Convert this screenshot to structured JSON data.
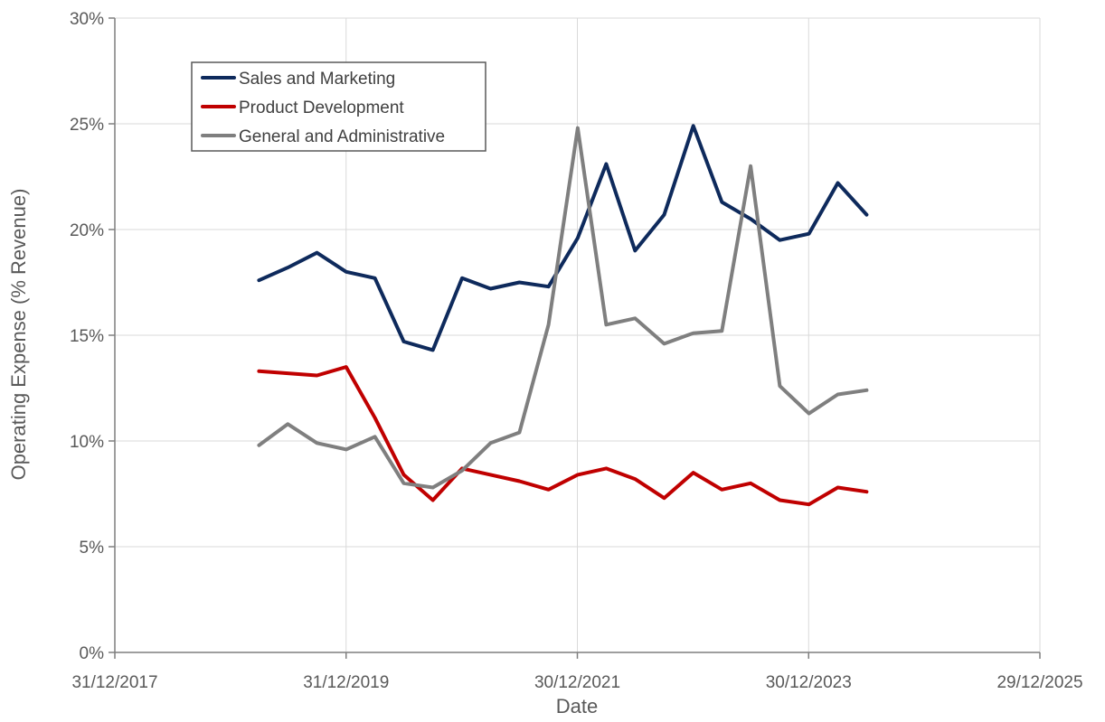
{
  "chart_data": {
    "type": "line",
    "xlabel": "Date",
    "ylabel": "Operating Expense (% Revenue)",
    "x_ticks": [
      "31/12/2017",
      "31/12/2019",
      "30/12/2021",
      "30/12/2023",
      "29/12/2025"
    ],
    "y_ticks": [
      "0%",
      "5%",
      "10%",
      "15%",
      "20%",
      "25%",
      "30%"
    ],
    "xlim": [
      "2017-12-31",
      "2025-12-29"
    ],
    "ylim": [
      0,
      30
    ],
    "grid": true,
    "legend_position": "top-left",
    "x": [
      "2019-03-31",
      "2019-06-30",
      "2019-09-30",
      "2019-12-31",
      "2020-03-31",
      "2020-06-30",
      "2020-09-30",
      "2020-12-31",
      "2021-03-31",
      "2021-06-30",
      "2021-09-30",
      "2021-12-31",
      "2022-03-31",
      "2022-06-30",
      "2022-09-30",
      "2022-12-31",
      "2023-03-31",
      "2023-06-30",
      "2023-09-30",
      "2023-12-31",
      "2024-03-31",
      "2024-06-30"
    ],
    "series": [
      {
        "name": "Sales and Marketing",
        "color": "#0e2a5c",
        "values": [
          17.6,
          18.2,
          18.9,
          18.0,
          17.7,
          14.7,
          14.3,
          17.7,
          17.2,
          17.5,
          17.3,
          19.6,
          23.1,
          19.0,
          20.7,
          24.9,
          21.3,
          20.5,
          19.5,
          19.8,
          22.2,
          20.7
        ]
      },
      {
        "name": "Product Development",
        "color": "#c00000",
        "values": [
          13.3,
          13.2,
          13.1,
          13.5,
          11.1,
          8.4,
          7.2,
          8.7,
          8.4,
          8.1,
          7.7,
          8.4,
          8.7,
          8.2,
          7.3,
          8.5,
          7.7,
          8.0,
          7.2,
          7.0,
          7.8,
          7.6
        ]
      },
      {
        "name": "General and Administrative",
        "color": "#7f7f7f",
        "values": [
          9.8,
          10.8,
          9.9,
          9.6,
          10.2,
          8.0,
          7.8,
          8.6,
          9.9,
          10.4,
          15.5,
          24.8,
          15.5,
          15.8,
          14.6,
          15.1,
          15.2,
          23.0,
          12.6,
          11.3,
          12.2,
          12.4
        ]
      }
    ]
  }
}
